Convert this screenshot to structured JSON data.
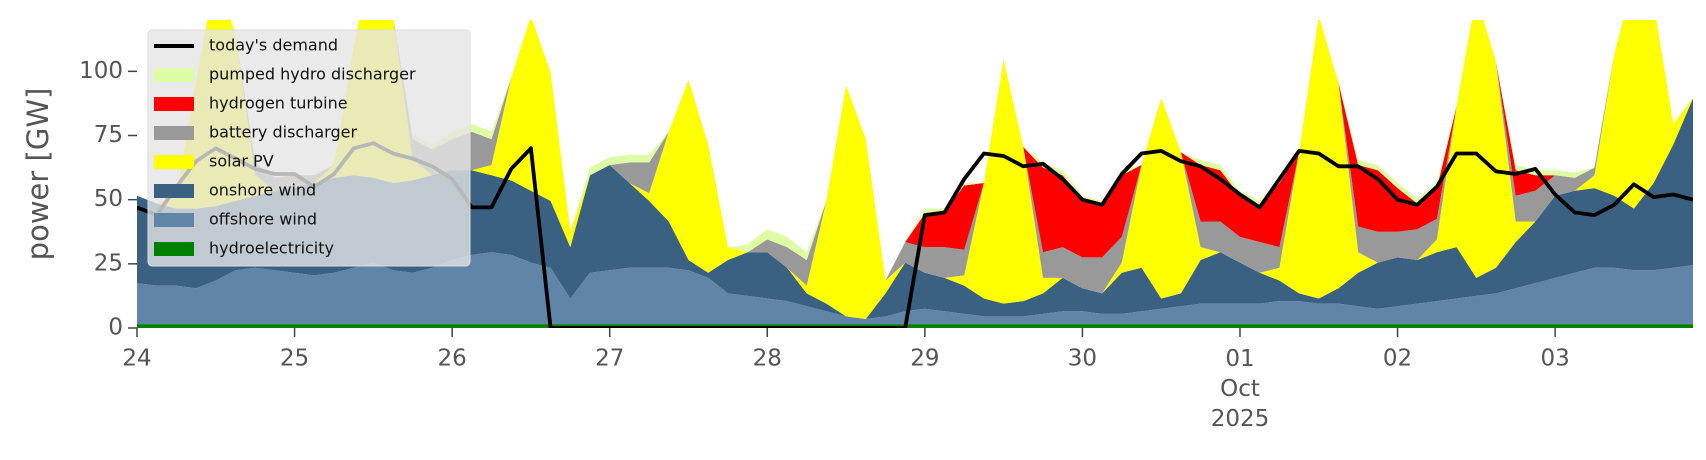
{
  "chart_data": {
    "type": "area",
    "ylabel": "power [GW]",
    "ylim": [
      0,
      120
    ],
    "yticks": [
      0,
      25,
      50,
      75,
      100
    ],
    "xlim": [
      "2025-09-24T00:00",
      "2025-10-03T21:00"
    ],
    "xticks": [
      {
        "value": "2025-09-24T00:00",
        "label": "24"
      },
      {
        "value": "2025-09-25T00:00",
        "label": "25"
      },
      {
        "value": "2025-09-26T00:00",
        "label": "26"
      },
      {
        "value": "2025-09-27T00:00",
        "label": "27"
      },
      {
        "value": "2025-09-28T00:00",
        "label": "28"
      },
      {
        "value": "2025-09-29T00:00",
        "label": "29"
      },
      {
        "value": "2025-09-30T00:00",
        "label": "30"
      },
      {
        "value": "2025-10-01T00:00",
        "label": "01\nOct\n2025"
      },
      {
        "value": "2025-10-02T00:00",
        "label": "02"
      },
      {
        "value": "2025-10-03T00:00",
        "label": "03"
      }
    ],
    "x": [
      "2025-09-24T00:00",
      "2025-09-24T03:00",
      "2025-09-24T06:00",
      "2025-09-24T09:00",
      "2025-09-24T12:00",
      "2025-09-24T15:00",
      "2025-09-24T18:00",
      "2025-09-24T21:00",
      "2025-09-25T00:00",
      "2025-09-25T03:00",
      "2025-09-25T06:00",
      "2025-09-25T09:00",
      "2025-09-25T12:00",
      "2025-09-25T15:00",
      "2025-09-25T18:00",
      "2025-09-25T21:00",
      "2025-09-26T00:00",
      "2025-09-26T03:00",
      "2025-09-26T06:00",
      "2025-09-26T09:00",
      "2025-09-26T12:00",
      "2025-09-26T15:00",
      "2025-09-26T18:00",
      "2025-09-26T21:00",
      "2025-09-27T00:00",
      "2025-09-27T03:00",
      "2025-09-27T06:00",
      "2025-09-27T09:00",
      "2025-09-27T12:00",
      "2025-09-27T15:00",
      "2025-09-27T18:00",
      "2025-09-27T21:00",
      "2025-09-28T00:00",
      "2025-09-28T03:00",
      "2025-09-28T06:00",
      "2025-09-28T09:00",
      "2025-09-28T12:00",
      "2025-09-28T15:00",
      "2025-09-28T18:00",
      "2025-09-28T21:00",
      "2025-09-29T00:00",
      "2025-09-29T03:00",
      "2025-09-29T06:00",
      "2025-09-29T09:00",
      "2025-09-29T12:00",
      "2025-09-29T15:00",
      "2025-09-29T18:00",
      "2025-09-29T21:00",
      "2025-09-30T00:00",
      "2025-09-30T03:00",
      "2025-09-30T06:00",
      "2025-09-30T09:00",
      "2025-09-30T12:00",
      "2025-09-30T15:00",
      "2025-09-30T18:00",
      "2025-09-30T21:00",
      "2025-10-01T00:00",
      "2025-10-01T03:00",
      "2025-10-01T06:00",
      "2025-10-01T09:00",
      "2025-10-01T12:00",
      "2025-10-01T15:00",
      "2025-10-01T18:00",
      "2025-10-01T21:00",
      "2025-10-02T00:00",
      "2025-10-02T03:00",
      "2025-10-02T06:00",
      "2025-10-02T09:00",
      "2025-10-02T12:00",
      "2025-10-02T15:00",
      "2025-10-02T18:00",
      "2025-10-02T21:00",
      "2025-10-03T00:00",
      "2025-10-03T03:00",
      "2025-10-03T06:00",
      "2025-10-03T09:00",
      "2025-10-03T12:00",
      "2025-10-03T15:00",
      "2025-10-03T18:00",
      "2025-10-03T21:00"
    ],
    "line": {
      "name": "today's demand",
      "color": "#000000",
      "values": [
        47,
        44,
        55,
        65,
        70,
        66,
        62,
        60,
        60,
        55,
        60,
        70,
        72,
        68,
        66,
        63,
        58,
        47,
        47,
        62,
        70,
        0,
        0,
        0,
        0,
        0,
        0,
        0,
        0,
        0,
        0,
        0,
        0,
        0,
        0,
        0,
        0,
        0,
        0,
        0,
        44,
        45,
        58,
        68,
        67,
        63,
        64,
        58,
        50,
        48,
        60,
        68,
        69,
        65,
        63,
        58,
        52,
        47,
        58,
        69,
        68,
        63,
        63,
        58,
        50,
        48,
        55,
        68,
        68,
        61,
        60,
        62,
        52,
        45,
        44,
        48,
        56,
        51,
        52,
        50
      ]
    },
    "series": [
      {
        "name": "hydroelectricity",
        "color": "#008000",
        "values": [
          1.5,
          1.5,
          1.5,
          1.5,
          1.5,
          1.5,
          1.5,
          1.5,
          1.5,
          1.5,
          1.5,
          1.5,
          1.5,
          1.5,
          1.5,
          1.5,
          1.5,
          1.5,
          1.5,
          1.5,
          1.5,
          1.5,
          1.5,
          1.5,
          1.5,
          1.5,
          1.5,
          1.5,
          1.5,
          1.5,
          1.5,
          1.5,
          1.5,
          1.5,
          1.5,
          1.5,
          1.5,
          1.5,
          1.5,
          1.5,
          1.5,
          1.5,
          1.5,
          1.5,
          1.5,
          1.5,
          1.5,
          1.5,
          1.5,
          1.5,
          1.5,
          1.5,
          1.5,
          1.5,
          1.5,
          1.5,
          1.5,
          1.5,
          1.5,
          1.5,
          1.5,
          1.5,
          1.5,
          1.5,
          1.5,
          1.5,
          1.5,
          1.5,
          1.5,
          1.5,
          1.5,
          1.5,
          1.5,
          1.5,
          1.5,
          1.5,
          1.5,
          1.5,
          1.5,
          1.5
        ]
      },
      {
        "name": "offshore wind",
        "color": "#6185a8",
        "values": [
          16,
          15,
          15,
          14,
          17,
          21,
          22,
          21,
          20,
          19,
          20,
          22,
          24,
          21,
          20,
          22,
          25,
          27,
          28,
          27,
          24,
          22,
          10,
          20,
          21,
          22,
          22,
          22,
          21,
          18,
          12,
          11,
          10,
          9,
          7,
          5,
          3,
          2,
          3,
          5,
          6,
          5,
          4,
          3,
          3,
          3,
          4,
          5,
          5,
          4,
          4,
          5,
          6,
          7,
          8,
          8,
          8,
          8,
          9,
          9,
          8,
          8,
          7,
          6,
          7,
          8,
          9,
          10,
          11,
          12,
          14,
          16,
          18,
          20,
          22,
          22,
          21,
          21,
          22,
          23
        ]
      },
      {
        "name": "onshore wind",
        "color": "#3b6182",
        "values": [
          34,
          32,
          30,
          31,
          29,
          27,
          28,
          31,
          33,
          36,
          37,
          36,
          33,
          34,
          36,
          36,
          35,
          33,
          30,
          29,
          28,
          26,
          20,
          38,
          41,
          33,
          26,
          18,
          4,
          2,
          13,
          17,
          18,
          13,
          5,
          3,
          0,
          0,
          9,
          19,
          14,
          13,
          11,
          7,
          5,
          6,
          8,
          13,
          9,
          8,
          16,
          17,
          4,
          5,
          17,
          20,
          16,
          12,
          8,
          3,
          2,
          6,
          13,
          18,
          19,
          17,
          19,
          20,
          7,
          10,
          18,
          24,
          32,
          32,
          31,
          28,
          24,
          34,
          48,
          65
        ]
      },
      {
        "name": "solar PV",
        "color": "#ffff00",
        "values": [
          0,
          0,
          5,
          50,
          90,
          65,
          8,
          0,
          0,
          0,
          5,
          50,
          90,
          65,
          8,
          0,
          0,
          0,
          4,
          40,
          68,
          50,
          6,
          0,
          0,
          0,
          3,
          35,
          70,
          50,
          5,
          0,
          0,
          0,
          3,
          40,
          90,
          70,
          5,
          0,
          0,
          0,
          4,
          45,
          95,
          60,
          6,
          0,
          0,
          0,
          4,
          40,
          78,
          55,
          5,
          0,
          0,
          0,
          5,
          55,
          110,
          80,
          8,
          0,
          0,
          0,
          5,
          55,
          110,
          80,
          8,
          0,
          0,
          0,
          5,
          55,
          90,
          70,
          8,
          0
        ]
      },
      {
        "name": "battery discharger",
        "color": "#999999",
        "values": [
          0,
          0,
          0,
          0,
          0,
          0,
          5,
          5,
          5,
          3,
          0,
          0,
          0,
          0,
          8,
          10,
          12,
          15,
          10,
          0,
          0,
          0,
          0,
          0,
          0,
          8,
          12,
          0,
          0,
          0,
          0,
          0,
          5,
          8,
          10,
          0,
          0,
          0,
          0,
          8,
          10,
          12,
          10,
          0,
          0,
          0,
          10,
          12,
          12,
          14,
          10,
          0,
          0,
          0,
          10,
          12,
          10,
          12,
          8,
          0,
          0,
          0,
          10,
          12,
          10,
          12,
          8,
          0,
          0,
          0,
          10,
          12,
          8,
          5,
          3,
          0,
          0,
          0,
          0,
          0
        ]
      },
      {
        "name": "hydrogen turbine",
        "color": "#ff0000",
        "values": [
          0,
          0,
          0,
          0,
          0,
          0,
          0,
          0,
          0,
          0,
          0,
          0,
          0,
          0,
          0,
          0,
          0,
          0,
          0,
          0,
          0,
          0,
          0,
          0,
          0,
          0,
          0,
          0,
          0,
          0,
          0,
          0,
          0,
          0,
          0,
          0,
          0,
          0,
          0,
          0,
          13,
          14,
          25,
          0,
          0,
          0,
          33,
          28,
          22,
          20,
          24,
          0,
          0,
          0,
          22,
          20,
          16,
          14,
          25,
          0,
          0,
          0,
          24,
          24,
          17,
          10,
          12,
          0,
          0,
          0,
          10,
          6,
          0,
          0,
          0,
          0,
          0,
          0,
          0,
          0
        ]
      },
      {
        "name": "pumped hydro discharger",
        "color": "#ddfca3",
        "values": [
          0,
          0,
          0,
          0,
          0,
          0,
          0,
          0,
          0,
          0,
          0,
          0,
          0,
          0,
          2,
          2,
          3,
          3,
          3,
          0,
          0,
          0,
          0,
          3,
          3,
          3,
          3,
          0,
          0,
          0,
          0,
          3,
          4,
          4,
          3,
          0,
          0,
          0,
          0,
          0,
          2,
          1,
          1,
          0,
          0,
          0,
          2,
          2,
          2,
          2,
          2,
          0,
          0,
          0,
          2,
          2,
          2,
          2,
          2,
          0,
          0,
          0,
          2,
          2,
          2,
          2,
          2,
          0,
          0,
          0,
          2,
          2,
          2,
          2,
          0,
          0,
          0,
          0,
          0,
          0
        ]
      }
    ]
  }
}
